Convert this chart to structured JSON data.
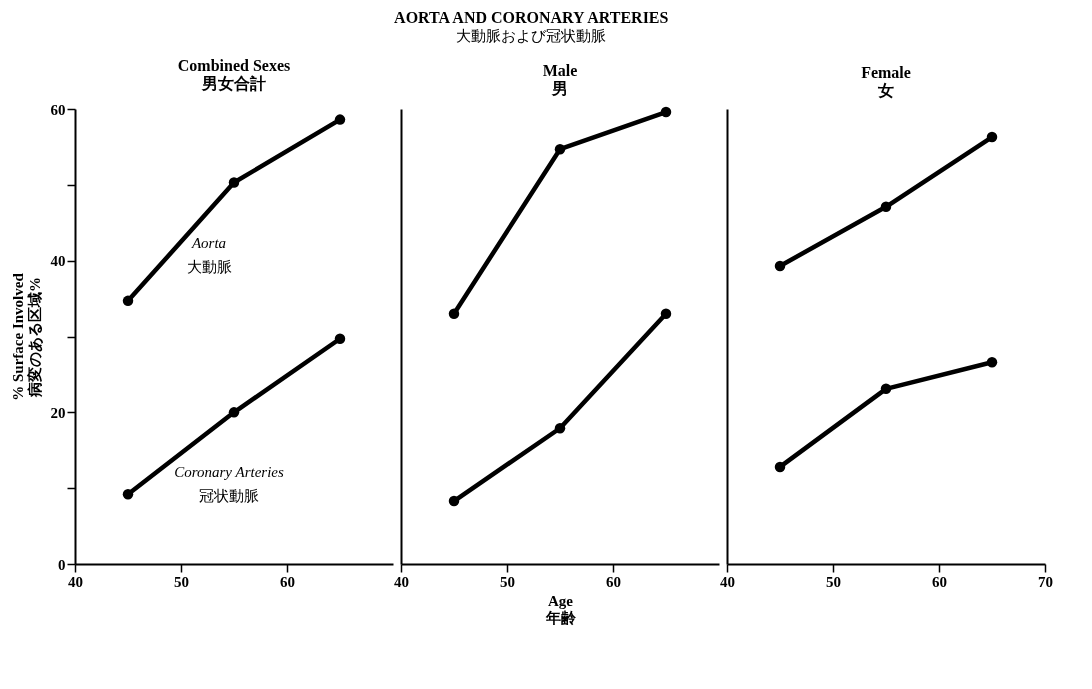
{
  "chart_data": [
    {
      "type": "line",
      "title": "Combined Sexes\n男女合計",
      "ylabel": "% Surface Involved\n病変のある区域%",
      "annotations": [
        "AORTA AND CORONARY ARTERIES",
        "大動脈および冠状動脈"
      ],
      "marker": "circle",
      "line_style": "solid",
      "grid": false,
      "xlim": [
        40,
        70
      ],
      "xticks": [
        40,
        50,
        60
      ],
      "ylim": [
        0,
        60
      ],
      "yticks": [
        0,
        {
          "value": 10,
          "label": null
        },
        20,
        {
          "value": 30,
          "label": null
        },
        40,
        {
          "value": 50,
          "label": null
        },
        60
      ],
      "x": [
        45,
        55,
        65
      ],
      "series": [
        {
          "name": "Aorta\n大動脈",
          "color": "#000000",
          "values": [
            34.7,
            50.3,
            58.6
          ]
        },
        {
          "name": "Coronary Arteries\n冠状動脈",
          "color": "#000000",
          "values": [
            9.2,
            20.0,
            29.7
          ]
        }
      ]
    },
    {
      "type": "line",
      "title": "Male\n男",
      "xlabel": "Age\n年齢",
      "marker": "circle",
      "line_style": "solid",
      "grid": false,
      "tick_labels": "x",
      "xlim": [
        40,
        70
      ],
      "xticks": [
        40,
        50,
        60
      ],
      "ylim": [
        0,
        60
      ],
      "x": [
        45,
        55,
        65
      ],
      "series": [
        {
          "color": "#000000",
          "values": [
            33.0,
            54.7,
            59.6
          ]
        },
        {
          "color": "#000000",
          "values": [
            8.3,
            17.9,
            33.0
          ]
        }
      ]
    },
    {
      "type": "line",
      "title": "Female\n女",
      "marker": "circle",
      "line_style": "solid",
      "grid": false,
      "tick_labels": "x",
      "xlim": [
        40,
        70
      ],
      "xticks": [
        40,
        50,
        60,
        70
      ],
      "ylim": [
        0,
        60
      ],
      "x": [
        45,
        55,
        65
      ],
      "series": [
        {
          "color": "#000000",
          "values": [
            39.3,
            47.1,
            56.3
          ]
        },
        {
          "color": "#000000",
          "values": [
            12.8,
            23.1,
            26.6
          ]
        }
      ]
    }
  ]
}
